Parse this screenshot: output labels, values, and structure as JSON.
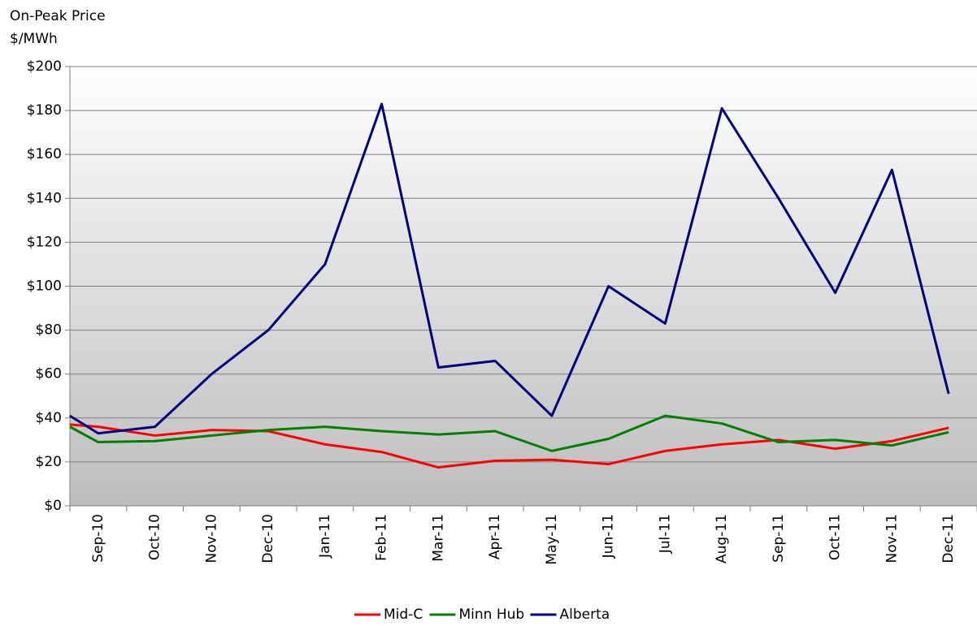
{
  "chart_data": {
    "type": "line",
    "title": "On-Peak Price",
    "subtitle": "$/MWh",
    "categories": [
      null,
      "Sep-10",
      "Oct-10",
      "Nov-10",
      "Dec-10",
      "Jan-11",
      "Feb-11",
      "Mar-11",
      "Apr-11",
      "May-11",
      "Jun-11",
      "Jul-11",
      "Aug-11",
      "Sep-11",
      "Oct-11",
      "Nov-11",
      "Dec-11"
    ],
    "series": [
      {
        "name": "Mid-C",
        "color": "#ff0000",
        "values": [
          37,
          36,
          32,
          34.5,
          34,
          28,
          24.5,
          17.5,
          20.5,
          21,
          19,
          25,
          28,
          30,
          26,
          29.5,
          35.5
        ]
      },
      {
        "name": "Minn Hub",
        "color": "#008000",
        "values": [
          36,
          29,
          29.5,
          32,
          34.5,
          36,
          34,
          32.5,
          34,
          25,
          30.5,
          41,
          37.5,
          29,
          30,
          27.5,
          33.5
        ]
      },
      {
        "name": "Alberta",
        "color": "#000080",
        "values": [
          41,
          33,
          36,
          60,
          80,
          110,
          183,
          63,
          66,
          41,
          100,
          83,
          181,
          140,
          97,
          153,
          51
        ]
      }
    ],
    "ylim": [
      0,
      200
    ],
    "yticks": [
      {
        "value": 0,
        "label": "$0"
      },
      {
        "value": 20,
        "label": "$20"
      },
      {
        "value": 40,
        "label": "$40"
      },
      {
        "value": 60,
        "label": "$60"
      },
      {
        "value": 80,
        "label": "$80"
      },
      {
        "value": 100,
        "label": "$100"
      },
      {
        "value": 120,
        "label": "$120"
      },
      {
        "value": 140,
        "label": "$140"
      },
      {
        "value": 160,
        "label": "$160"
      },
      {
        "value": 180,
        "label": "$180"
      },
      {
        "value": 200,
        "label": "$200"
      }
    ],
    "grid": true,
    "legend": "bottom"
  }
}
